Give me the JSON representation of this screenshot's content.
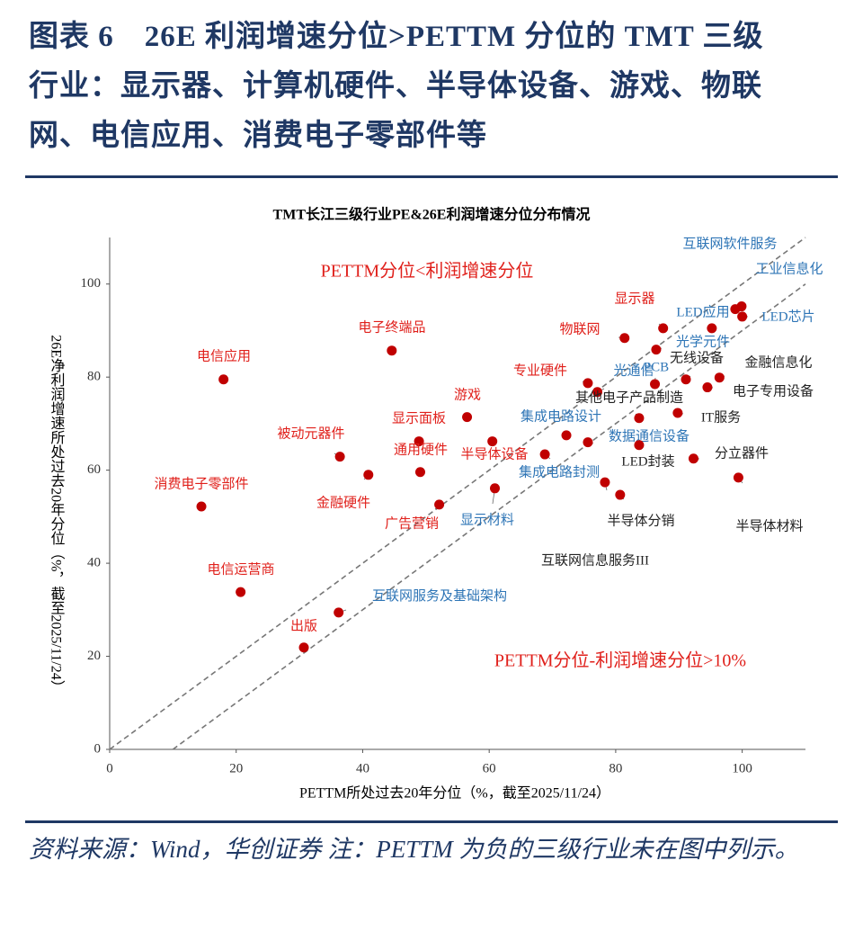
{
  "header": {
    "title": "图表 6　26E 利润增速分位>PETTM 分位的 TMT 三级行业：显示器、计算机硬件、半导体设备、游戏、物联网、电信应用、消费电子零部件等"
  },
  "chart_data": {
    "type": "scatter",
    "title": "TMT长江三级行业PE&26E利润增速分位分布情况",
    "x_label": "PETTM所处过去20年分位（%，截至2025/11/24）",
    "y_label": "26E净利润增速所处过去20年分位（%，截至2025/11/24）",
    "annotations": [
      {
        "text": "PETTM分位<利润增速分位",
        "color": "#e0201b"
      },
      {
        "text": "PETTM分位-利润增速分位>10%",
        "color": "#e0201b"
      }
    ],
    "labels": [
      "电信应用",
      "电子终端品",
      "被动元器件",
      "金融硬件",
      "消费电子零部件",
      "电信运营商",
      "显示面板",
      "通用硬件",
      "游戏",
      "广告营销",
      "半导体设备",
      "显示材料",
      "互联网服务及基础架构",
      "出版",
      "专业硬件",
      "光通信",
      "集成电路设计",
      "数据通信设备",
      "集成电路封测",
      "显示器",
      "物联网",
      "光学元件",
      "PCB",
      "无线设备",
      "其他电子产品制造",
      "IT服务",
      "LED封装",
      "分立器件",
      "互联网信息服务III",
      "半导体分销",
      "半导体材料",
      "LED应用",
      "互联网软件服务",
      "工业信息化",
      "LED芯片",
      "金融信息化",
      "电子专用设备"
    ],
    "x": [
      18.0,
      44.6,
      36.4,
      40.9,
      14.5,
      20.7,
      48.9,
      49.1,
      56.5,
      52.1,
      60.5,
      60.9,
      36.2,
      30.7,
      75.6,
      77.1,
      72.2,
      75.6,
      68.8,
      87.5,
      81.4,
      86.4,
      86.2,
      91.1,
      83.7,
      89.8,
      83.7,
      92.3,
      78.3,
      80.7,
      99.4,
      95.2,
      98.9,
      99.9,
      100.0,
      96.4,
      94.5
    ],
    "values": [
      79.5,
      85.7,
      62.9,
      59.0,
      52.2,
      33.8,
      66.2,
      59.6,
      71.4,
      52.6,
      66.2,
      56.1,
      29.4,
      21.9,
      78.7,
      76.8,
      67.5,
      66.0,
      63.4,
      90.5,
      88.4,
      85.9,
      78.5,
      79.5,
      71.2,
      72.3,
      65.4,
      62.5,
      57.4,
      54.7,
      58.4,
      90.5,
      94.6,
      95.2,
      93.0,
      79.9,
      77.8
    ],
    "label_colors": [
      "#e0201b",
      "#e0201b",
      "#e0201b",
      "#e0201b",
      "#e0201b",
      "#e0201b",
      "#e0201b",
      "#e0201b",
      "#e0201b",
      "#e0201b",
      "#e0201b",
      "#2e75b6",
      "#2e75b6",
      "#e0201b",
      "#e0201b",
      "#2e75b6",
      "#2e75b6",
      "#2e75b6",
      "#2e75b6",
      "#e0201b",
      "#e0201b",
      "#2e75b6",
      "#2e75b6",
      "#222222",
      "#222222",
      "#222222",
      "#222222",
      "#222222",
      "#222222",
      "#222222",
      "#222222",
      "#2e75b6",
      "#2e75b6",
      "#2e75b6",
      "#2e75b6",
      "#222222",
      "#222222"
    ],
    "color": "#c00000",
    "diagonal_offsets": [
      0,
      10
    ],
    "xlim": [
      0,
      110
    ],
    "ylim": [
      0,
      110
    ],
    "xticks": [
      0,
      20,
      40,
      60,
      80,
      100
    ],
    "yticks": [
      0,
      20,
      40,
      60,
      80,
      100
    ]
  },
  "footer": {
    "note": "资料来源：Wind，华创证券 注：PETTM 为负的三级行业未在图中列示。"
  }
}
